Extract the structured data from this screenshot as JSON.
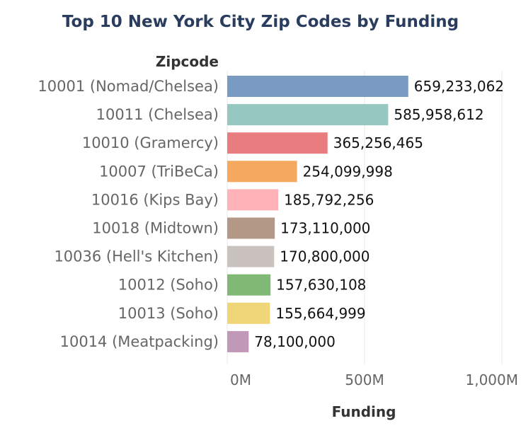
{
  "chart_data": {
    "type": "bar",
    "orientation": "horizontal",
    "title": "Top 10 New York City Zip Codes by Funding",
    "ylabel": "Zipcode",
    "xlabel": "Funding",
    "categories": [
      "10001 (Nomad/Chelsea)",
      "10011 (Chelsea)",
      "10010 (Gramercy)",
      "10007 (TriBeCa)",
      "10016 (Kips Bay)",
      "10018 (Midtown)",
      "10036 (Hell's Kitchen)",
      "10012 (Soho)",
      "10013 (Soho)",
      "10014 (Meatpacking)"
    ],
    "values": [
      659233062,
      585958612,
      365256465,
      254099998,
      185792256,
      173110000,
      170800000,
      157630108,
      155664999,
      78100000
    ],
    "value_labels": [
      "659,233,062",
      "585,958,612",
      "365,256,465",
      "254,099,998",
      "185,792,256",
      "173,110,000",
      "170,800,000",
      "157,630,108",
      "155,664,999",
      "78,100,000"
    ],
    "colors": [
      "#7a9bc1",
      "#97c7c1",
      "#e87c7e",
      "#f5a95e",
      "#ffb3b8",
      "#b39887",
      "#c9c2be",
      "#80b875",
      "#f1d579",
      "#c298b8"
    ],
    "xlim": [
      0,
      1000000000
    ],
    "ticks": [
      {
        "value": 0,
        "label": "0M"
      },
      {
        "value": 500000000,
        "label": "500M"
      },
      {
        "value": 1000000000,
        "label": "1,000M"
      }
    ],
    "grid": true
  }
}
